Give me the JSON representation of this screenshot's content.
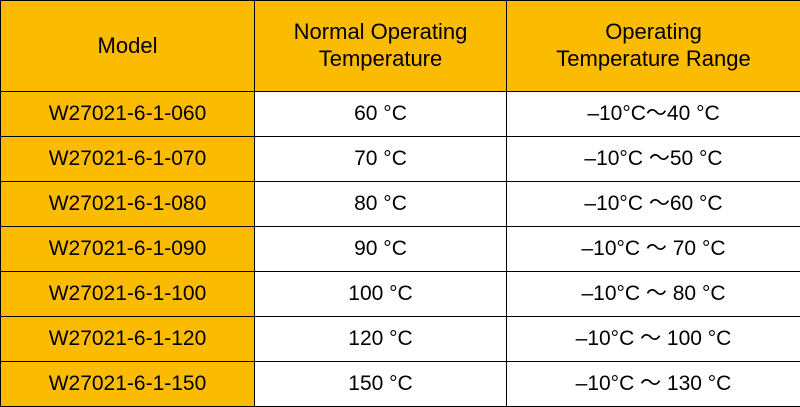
{
  "header": {
    "model": "Model",
    "normal_operating_temperature": [
      "Normal Operating",
      "Temperature"
    ],
    "operating_temperature_range": [
      "Operating",
      "Temperature Range"
    ]
  },
  "rows": [
    {
      "model": "W27021-6-1-060",
      "normal_temp": "60 °C",
      "range": "–10°C～40 °C"
    },
    {
      "model": "W27021-6-1-070",
      "normal_temp": "70 °C",
      "range": "–10°C ～50 °C"
    },
    {
      "model": "W27021-6-1-080",
      "normal_temp": "80 °C",
      "range": "–10°C ～60 °C"
    },
    {
      "model": "W27021-6-1-090",
      "normal_temp": "90 °C",
      "range": "–10°C ～ 70 °C"
    },
    {
      "model": "W27021-6-1-100",
      "normal_temp": "100 °C",
      "range": "–10°C ～ 80 °C"
    },
    {
      "model": "W27021-6-1-120",
      "normal_temp": "120 °C",
      "range": "–10°C ～ 100 °C"
    },
    {
      "model": "W27021-6-1-150",
      "normal_temp": "150 °C",
      "range": "–10°C ～ 130 °C"
    }
  ],
  "colors": {
    "header_background": "#fbbb00",
    "model_column_background": "#fbbb00",
    "cell_background": "#ffffff",
    "border": "#000000"
  }
}
